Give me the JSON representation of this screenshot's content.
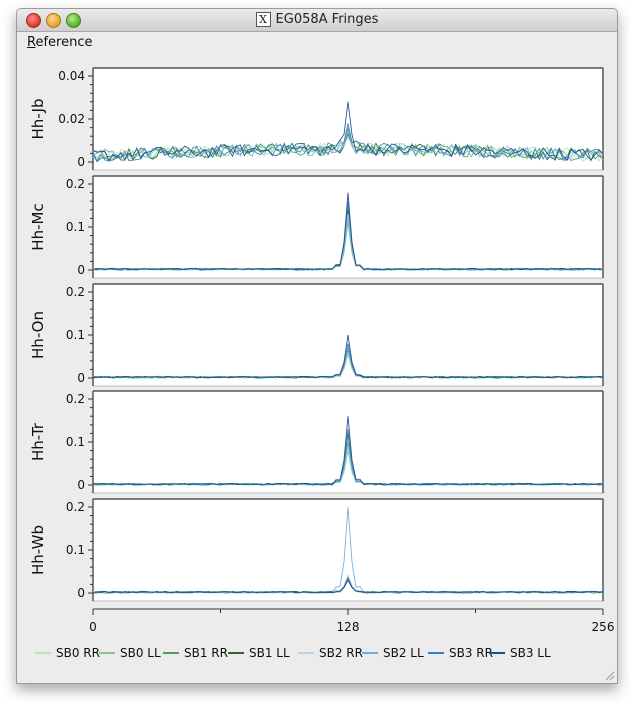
{
  "window": {
    "title": "EG058A Fringes",
    "x_logo": "X"
  },
  "menubar": {
    "items": [
      {
        "label": "Reference",
        "mnemonic": "R"
      }
    ]
  },
  "colors": {
    "SB0 RR": "#b6e6b0",
    "SB0 LL": "#7dcb80",
    "SB1 RR": "#49a24f",
    "SB1 LL": "#1f6b33",
    "SB2 RR": "#b8d4e8",
    "SB2 LL": "#73aedb",
    "SB3 RR": "#3d7fbd",
    "SB3 LL": "#1c4f8c"
  },
  "chart_data": {
    "type": "line",
    "x_range": [
      0,
      256
    ],
    "x_ticks": [
      "0",
      "128",
      "256"
    ],
    "legend_position": "bottom",
    "legend": [
      "SB0 RR",
      "SB0 LL",
      "SB1 RR",
      "SB1 LL",
      "SB2 RR",
      "SB2 LL",
      "SB3 RR",
      "SB3 LL"
    ],
    "panels": [
      {
        "label": "Hh-Jb",
        "ylim": [
          0,
          0.04
        ],
        "y_ticks": [
          "0",
          "0.02",
          "0.04"
        ],
        "baseline": 0.003,
        "noise": 0.003,
        "hump": 0.003,
        "peak": {
          "x": 128,
          "values": [
            0.014,
            0.012,
            0.016,
            0.013,
            0.012,
            0.015,
            0.018,
            0.028
          ]
        }
      },
      {
        "label": "Hh-Mc",
        "ylim": [
          0,
          0.2
        ],
        "y_ticks": [
          "0",
          "0.1",
          "0.2"
        ],
        "baseline": 0.002,
        "noise": 0.002,
        "hump": 0.0,
        "peak": {
          "x": 128,
          "values": [
            0.12,
            0.11,
            0.15,
            0.14,
            0.13,
            0.12,
            0.16,
            0.18
          ]
        }
      },
      {
        "label": "Hh-On",
        "ylim": [
          0,
          0.2
        ],
        "y_ticks": [
          "0",
          "0.1",
          "0.2"
        ],
        "baseline": 0.002,
        "noise": 0.002,
        "hump": 0.0,
        "peak": {
          "x": 128,
          "values": [
            0.06,
            0.055,
            0.07,
            0.065,
            0.06,
            0.07,
            0.08,
            0.1
          ]
        }
      },
      {
        "label": "Hh-Tr",
        "ylim": [
          0,
          0.2
        ],
        "y_ticks": [
          "0",
          "0.1",
          "0.2"
        ],
        "baseline": 0.002,
        "noise": 0.002,
        "hump": 0.0,
        "peak": {
          "x": 128,
          "values": [
            0.09,
            0.08,
            0.1,
            0.12,
            0.09,
            0.1,
            0.13,
            0.16
          ]
        }
      },
      {
        "label": "Hh-Wb",
        "ylim": [
          0,
          0.2
        ],
        "y_ticks": [
          "0",
          "0.1",
          "0.2"
        ],
        "baseline": 0.002,
        "noise": 0.002,
        "hump": 0.0,
        "peak": {
          "x": 128,
          "values": [
            0.03,
            0.03,
            0.035,
            0.04,
            0.04,
            0.2,
            0.035,
            0.03
          ]
        }
      }
    ]
  }
}
